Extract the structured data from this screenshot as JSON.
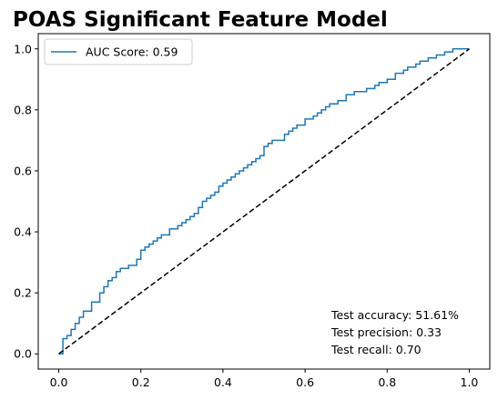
{
  "chart_data": {
    "type": "line",
    "title": "POAS Significant Feature Model",
    "xlabel": "",
    "ylabel": "",
    "xlim": [
      -0.05,
      1.05
    ],
    "ylim": [
      -0.05,
      1.05
    ],
    "xticks": [
      0.0,
      0.2,
      0.4,
      0.6,
      0.8,
      1.0
    ],
    "xtick_labels": [
      "0.0",
      "0.2",
      "0.4",
      "0.6",
      "0.8",
      "1.0"
    ],
    "yticks": [
      0.0,
      0.2,
      0.4,
      0.6,
      0.8,
      1.0
    ],
    "ytick_labels": [
      "0.0",
      "0.2",
      "0.4",
      "0.6",
      "0.8",
      "1.0"
    ],
    "grid": false,
    "legend_position": "top-left",
    "series": [
      {
        "name": "AUC Score: 0.59",
        "color": "#1f77b4",
        "style": "solid",
        "x": [
          0.0,
          0.01,
          0.01,
          0.02,
          0.02,
          0.03,
          0.03,
          0.04,
          0.05,
          0.06,
          0.06,
          0.07,
          0.08,
          0.08,
          0.1,
          0.1,
          0.11,
          0.11,
          0.12,
          0.12,
          0.13,
          0.14,
          0.15,
          0.15,
          0.16,
          0.17,
          0.18,
          0.19,
          0.19,
          0.2,
          0.2,
          0.21,
          0.22,
          0.23,
          0.24,
          0.25,
          0.26,
          0.27,
          0.27,
          0.28,
          0.29,
          0.3,
          0.31,
          0.32,
          0.33,
          0.34,
          0.35,
          0.36,
          0.37,
          0.38,
          0.39,
          0.4,
          0.41,
          0.42,
          0.43,
          0.44,
          0.45,
          0.46,
          0.47,
          0.48,
          0.49,
          0.5,
          0.5,
          0.51,
          0.52,
          0.53,
          0.54,
          0.55,
          0.55,
          0.56,
          0.57,
          0.58,
          0.6,
          0.6,
          0.62,
          0.63,
          0.64,
          0.65,
          0.66,
          0.68,
          0.7,
          0.7,
          0.72,
          0.74,
          0.75,
          0.76,
          0.77,
          0.78,
          0.8,
          0.82,
          0.82,
          0.84,
          0.85,
          0.86,
          0.87,
          0.88,
          0.9,
          0.9,
          0.92,
          0.93,
          0.94,
          0.95,
          0.96,
          0.97,
          0.98,
          1.0
        ],
        "y": [
          0.0,
          0.02,
          0.05,
          0.05,
          0.06,
          0.06,
          0.08,
          0.1,
          0.12,
          0.14,
          0.14,
          0.14,
          0.14,
          0.17,
          0.18,
          0.2,
          0.21,
          0.22,
          0.23,
          0.24,
          0.25,
          0.27,
          0.27,
          0.28,
          0.28,
          0.29,
          0.29,
          0.3,
          0.31,
          0.32,
          0.34,
          0.35,
          0.36,
          0.37,
          0.38,
          0.39,
          0.39,
          0.4,
          0.41,
          0.41,
          0.42,
          0.43,
          0.44,
          0.45,
          0.46,
          0.48,
          0.5,
          0.51,
          0.52,
          0.53,
          0.55,
          0.56,
          0.57,
          0.58,
          0.59,
          0.6,
          0.61,
          0.62,
          0.63,
          0.64,
          0.65,
          0.66,
          0.68,
          0.69,
          0.7,
          0.7,
          0.7,
          0.71,
          0.72,
          0.73,
          0.74,
          0.75,
          0.76,
          0.77,
          0.78,
          0.79,
          0.8,
          0.81,
          0.82,
          0.83,
          0.84,
          0.85,
          0.86,
          0.86,
          0.87,
          0.87,
          0.88,
          0.89,
          0.9,
          0.91,
          0.92,
          0.93,
          0.94,
          0.94,
          0.95,
          0.96,
          0.96,
          0.97,
          0.98,
          0.98,
          0.99,
          0.99,
          1.0,
          1.0,
          1.0,
          1.0
        ]
      },
      {
        "name": "",
        "color": "#000000",
        "style": "dashed",
        "x": [
          0.0,
          1.0
        ],
        "y": [
          0.0,
          1.0
        ]
      }
    ],
    "annotations": [
      "Test accuracy: 51.61%",
      "Test precision: 0.33",
      "Test recall: 0.70"
    ]
  }
}
